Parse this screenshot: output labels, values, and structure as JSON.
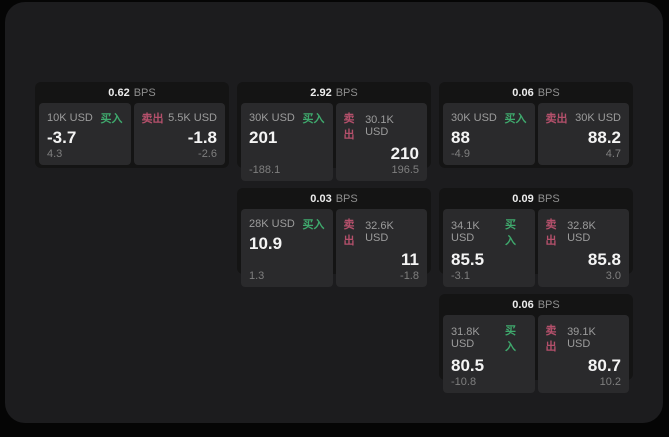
{
  "colors": {
    "page_bg": "#050505",
    "container_bg": "#1c1c1e",
    "card_bg": "#141414",
    "panel_bg": "#2a2a2c",
    "buy": "#3fa96d",
    "sell": "#b4506b"
  },
  "labels": {
    "buy": "买入",
    "sell": "卖出",
    "bps": "BPS"
  },
  "cards": [
    {
      "row": 1,
      "col": 1,
      "bps": "0.62",
      "buy": {
        "amount": "10K USD",
        "value": "-3.7",
        "sub": "4.3"
      },
      "sell": {
        "amount": "5.5K USD",
        "value": "-1.8",
        "sub": "-2.6"
      }
    },
    {
      "row": 1,
      "col": 2,
      "bps": "2.92",
      "buy": {
        "amount": "30K USD",
        "value": "201",
        "sub": "-188.1"
      },
      "sell": {
        "amount": "30.1K USD",
        "value": "210",
        "sub": "196.5"
      }
    },
    {
      "row": 1,
      "col": 3,
      "bps": "0.06",
      "buy": {
        "amount": "30K USD",
        "value": "88",
        "sub": "-4.9"
      },
      "sell": {
        "amount": "30K USD",
        "value": "88.2",
        "sub": "4.7"
      }
    },
    {
      "row": 2,
      "col": 2,
      "bps": "0.03",
      "buy": {
        "amount": "28K USD",
        "value": "10.9",
        "sub": "1.3"
      },
      "sell": {
        "amount": "32.6K USD",
        "value": "11",
        "sub": "-1.8"
      }
    },
    {
      "row": 2,
      "col": 3,
      "bps": "0.09",
      "buy": {
        "amount": "34.1K USD",
        "value": "85.5",
        "sub": "-3.1"
      },
      "sell": {
        "amount": "32.8K USD",
        "value": "85.8",
        "sub": "3.0"
      }
    },
    {
      "row": 3,
      "col": 3,
      "bps": "0.06",
      "buy": {
        "amount": "31.8K USD",
        "value": "80.5",
        "sub": "-10.8"
      },
      "sell": {
        "amount": "39.1K USD",
        "value": "80.7",
        "sub": "10.2"
      }
    }
  ]
}
